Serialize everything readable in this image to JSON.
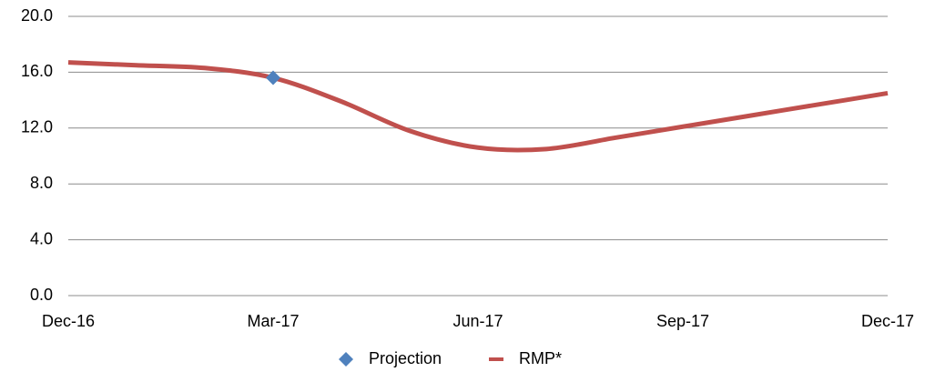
{
  "chart_data": {
    "type": "line",
    "categories": [
      "Dec-16",
      null,
      null,
      "Mar-17",
      null,
      null,
      "Jun-17",
      null,
      null,
      "Sep-17",
      null,
      null,
      "Dec-17"
    ],
    "series": [
      {
        "name": "Projection",
        "color": "#4f81bd",
        "marker": "diamond",
        "values": [
          null,
          null,
          null,
          15.6,
          null,
          null,
          null,
          null,
          null,
          null,
          null,
          null,
          null
        ]
      },
      {
        "name": "RMP*",
        "color": "#c0504d",
        "values": [
          16.7,
          16.5,
          16.3,
          15.6,
          13.9,
          11.8,
          10.6,
          10.5,
          11.3,
          12.1,
          12.9,
          13.7,
          14.5
        ]
      }
    ],
    "ylim": [
      0,
      20
    ],
    "yticks": [
      {
        "value": 0,
        "label": "0.0"
      },
      {
        "value": 4,
        "label": "4.0"
      },
      {
        "value": 8,
        "label": "8.0"
      },
      {
        "value": 12,
        "label": "12.0"
      },
      {
        "value": 16,
        "label": "16.0"
      },
      {
        "value": 20,
        "label": "20.0"
      }
    ],
    "grid": true,
    "legend": "bottom"
  }
}
